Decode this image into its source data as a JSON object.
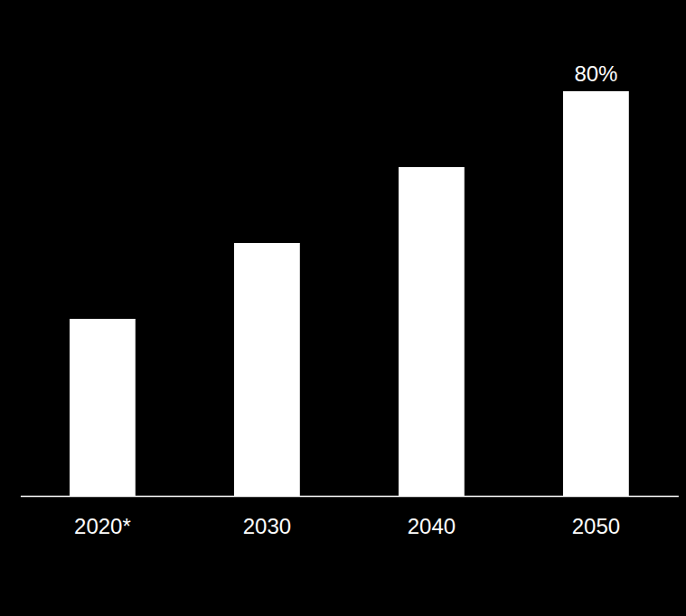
{
  "chart_data": {
    "type": "bar",
    "categories": [
      "2020*",
      "2030",
      "2040",
      "2050"
    ],
    "values": [
      35,
      50,
      65,
      80
    ],
    "value_labels": [
      null,
      null,
      null,
      "80%"
    ],
    "data_labels": true,
    "tick_labels": "x",
    "color": "#ffffff"
  }
}
